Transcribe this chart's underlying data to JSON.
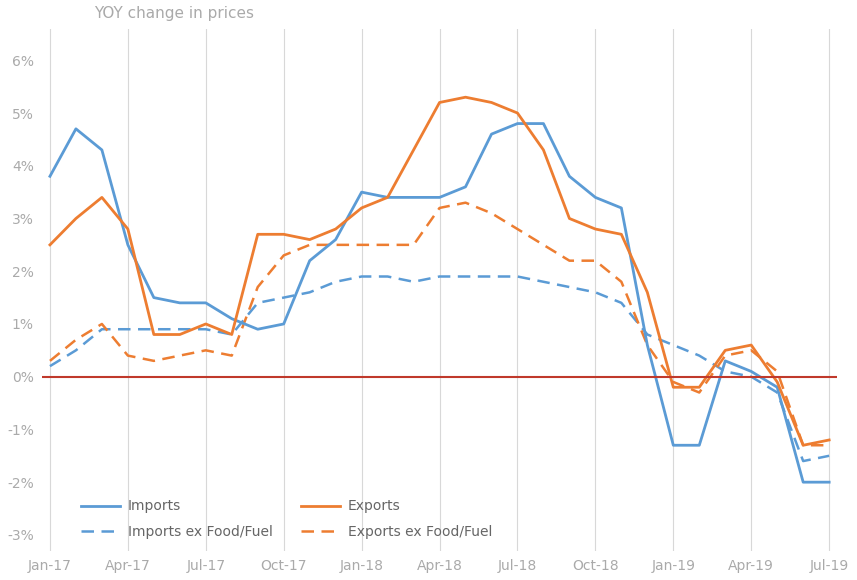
{
  "title": "YOY change in prices",
  "background_color": "#ffffff",
  "grid_color": "#d8d8d8",
  "zero_line_color": "#c0392b",
  "imports_color": "#5b9bd5",
  "exports_color": "#ed7d31",
  "yticks": [
    -0.03,
    -0.02,
    -0.01,
    0.0,
    0.01,
    0.02,
    0.03,
    0.04,
    0.05,
    0.06
  ],
  "ytick_labels": [
    "-3%",
    "-2%",
    "-1%",
    "0%",
    "1%",
    "2%",
    "3%",
    "4%",
    "5%",
    "6%"
  ],
  "xtick_labels": [
    "Jan-17",
    "Apr-17",
    "Jul-17",
    "Oct-17",
    "Jan-18",
    "Apr-18",
    "Jul-18",
    "Oct-18",
    "Jan-19",
    "Apr-19",
    "Jul-19"
  ],
  "xtick_positions": [
    0,
    3,
    6,
    9,
    12,
    15,
    18,
    21,
    24,
    27,
    30
  ],
  "imports": [
    0.038,
    0.047,
    0.043,
    0.025,
    0.015,
    0.014,
    0.014,
    0.011,
    0.009,
    0.01,
    0.022,
    0.026,
    0.035,
    0.034,
    0.034,
    0.034,
    0.036,
    0.046,
    0.048,
    0.048,
    0.038,
    0.034,
    0.032,
    0.006,
    -0.013,
    -0.013,
    0.003,
    0.001,
    -0.002,
    -0.02,
    -0.02
  ],
  "exports": [
    0.025,
    0.03,
    0.034,
    0.028,
    0.008,
    0.008,
    0.01,
    0.008,
    0.027,
    0.027,
    0.026,
    0.028,
    0.032,
    0.034,
    0.043,
    0.052,
    0.053,
    0.052,
    0.05,
    0.043,
    0.03,
    0.028,
    0.027,
    0.016,
    -0.002,
    -0.002,
    0.005,
    0.006,
    -0.001,
    -0.013,
    -0.012
  ],
  "imports_ex": [
    0.002,
    0.005,
    0.009,
    0.009,
    0.009,
    0.009,
    0.009,
    0.008,
    0.014,
    0.015,
    0.016,
    0.018,
    0.019,
    0.019,
    0.018,
    0.019,
    0.019,
    0.019,
    0.019,
    0.018,
    0.017,
    0.016,
    0.014,
    0.008,
    0.006,
    0.004,
    0.001,
    0.0,
    -0.003,
    -0.016,
    -0.015
  ],
  "exports_ex": [
    0.003,
    0.007,
    0.01,
    0.004,
    0.003,
    0.004,
    0.005,
    0.004,
    0.017,
    0.023,
    0.025,
    0.025,
    0.025,
    0.025,
    0.025,
    0.032,
    0.033,
    0.031,
    0.028,
    0.025,
    0.022,
    0.022,
    0.018,
    0.006,
    -0.001,
    -0.003,
    0.004,
    0.005,
    0.001,
    -0.013,
    -0.013
  ],
  "n_points": 31,
  "legend_labels": [
    "Imports",
    "Imports ex Food/Fuel",
    "Exports",
    "Exports ex Food/Fuel"
  ]
}
